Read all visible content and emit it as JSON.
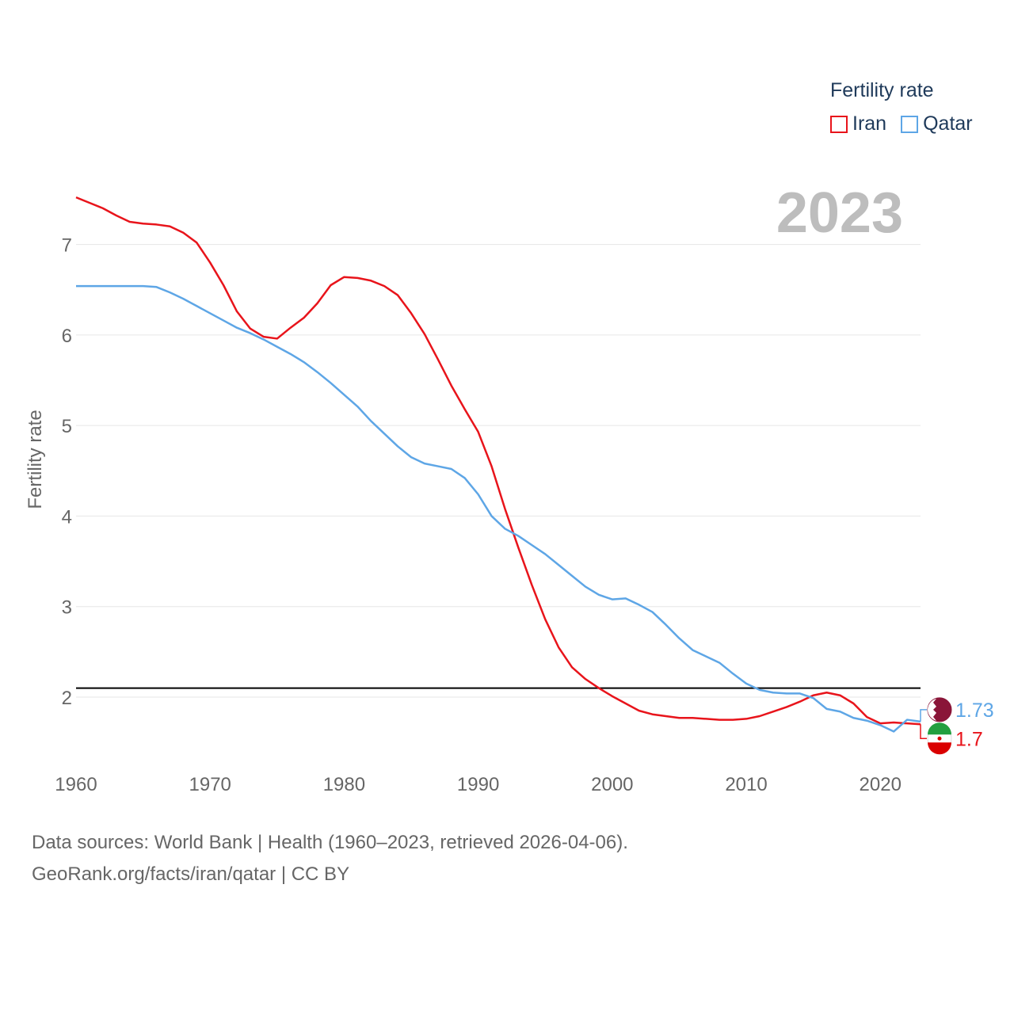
{
  "legend": {
    "title": "Fertility rate",
    "items": [
      {
        "name": "Iran",
        "color": "#e8141b"
      },
      {
        "name": "Qatar",
        "color": "#5ea6e6"
      }
    ]
  },
  "year_overlay": "2023",
  "source": {
    "line1": "Data sources: World Bank | Health (1960–2023, retrieved 2026-04-06).",
    "line2": "GeoRank.org/facts/iran/qatar | CC BY"
  },
  "chart_data": {
    "type": "line",
    "title": "Fertility rate",
    "xlabel": "",
    "ylabel": "Fertility rate",
    "x_ticks": [
      1960,
      1970,
      1980,
      1990,
      2000,
      2010,
      2020
    ],
    "y_ticks": [
      2,
      3,
      4,
      5,
      6,
      7
    ],
    "xlim": [
      1960,
      2023
    ],
    "ylim": [
      1.3,
      7.6
    ],
    "reference_line": 2.1,
    "grid": true,
    "x": [
      1960,
      1961,
      1962,
      1963,
      1964,
      1965,
      1966,
      1967,
      1968,
      1969,
      1970,
      1971,
      1972,
      1973,
      1974,
      1975,
      1976,
      1977,
      1978,
      1979,
      1980,
      1981,
      1982,
      1983,
      1984,
      1985,
      1986,
      1987,
      1988,
      1989,
      1990,
      1991,
      1992,
      1993,
      1994,
      1995,
      1996,
      1997,
      1998,
      1999,
      2000,
      2001,
      2002,
      2003,
      2004,
      2005,
      2006,
      2007,
      2008,
      2009,
      2010,
      2011,
      2012,
      2013,
      2014,
      2015,
      2016,
      2017,
      2018,
      2019,
      2020,
      2021,
      2022,
      2023
    ],
    "series": [
      {
        "name": "Iran",
        "color": "#e8141b",
        "end_label": "1.7",
        "values": [
          7.52,
          7.46,
          7.4,
          7.32,
          7.25,
          7.23,
          7.22,
          7.2,
          7.13,
          7.02,
          6.8,
          6.55,
          6.26,
          6.07,
          5.98,
          5.96,
          6.08,
          6.19,
          6.35,
          6.55,
          6.64,
          6.63,
          6.6,
          6.54,
          6.44,
          6.24,
          6.01,
          5.73,
          5.44,
          5.18,
          4.93,
          4.55,
          4.08,
          3.65,
          3.24,
          2.86,
          2.55,
          2.33,
          2.2,
          2.1,
          2.01,
          1.93,
          1.85,
          1.81,
          1.79,
          1.77,
          1.77,
          1.76,
          1.75,
          1.75,
          1.76,
          1.79,
          1.84,
          1.89,
          1.95,
          2.02,
          2.05,
          2.02,
          1.93,
          1.78,
          1.71,
          1.72,
          1.71,
          1.7
        ]
      },
      {
        "name": "Qatar",
        "color": "#5ea6e6",
        "end_label": "1.73",
        "values": [
          6.54,
          6.54,
          6.54,
          6.54,
          6.54,
          6.54,
          6.53,
          6.47,
          6.4,
          6.32,
          6.24,
          6.16,
          6.08,
          6.02,
          5.95,
          5.87,
          5.79,
          5.7,
          5.59,
          5.47,
          5.34,
          5.21,
          5.05,
          4.91,
          4.77,
          4.65,
          4.58,
          4.55,
          4.52,
          4.42,
          4.24,
          4.0,
          3.86,
          3.78,
          3.68,
          3.58,
          3.46,
          3.34,
          3.22,
          3.13,
          3.08,
          3.09,
          3.02,
          2.94,
          2.8,
          2.65,
          2.52,
          2.45,
          2.38,
          2.26,
          2.15,
          2.08,
          2.05,
          2.04,
          2.04,
          1.99,
          1.87,
          1.84,
          1.77,
          1.74,
          1.69,
          1.62,
          1.75,
          1.73
        ]
      }
    ]
  }
}
